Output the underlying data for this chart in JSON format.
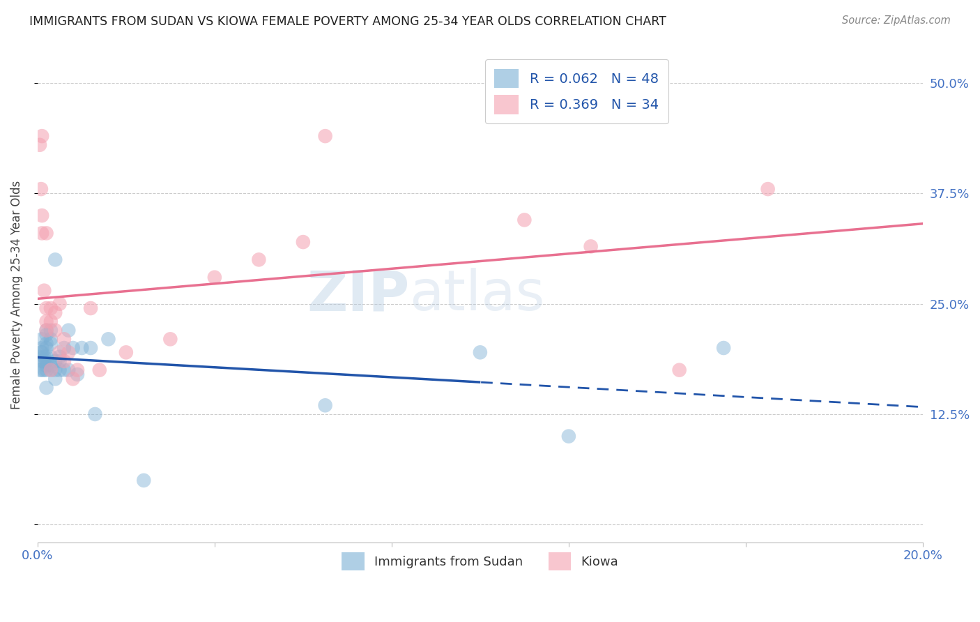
{
  "title": "IMMIGRANTS FROM SUDAN VS KIOWA FEMALE POVERTY AMONG 25-34 YEAR OLDS CORRELATION CHART",
  "source": "Source: ZipAtlas.com",
  "tick_color": "#4472c4",
  "ylabel": "Female Poverty Among 25-34 Year Olds",
  "x_min": 0.0,
  "x_max": 0.2,
  "y_min": -0.02,
  "y_max": 0.54,
  "y_ticks": [
    0.0,
    0.125,
    0.25,
    0.375,
    0.5
  ],
  "y_tick_labels": [
    "",
    "12.5%",
    "25.0%",
    "37.5%",
    "50.0%"
  ],
  "x_ticks": [
    0.0,
    0.04,
    0.08,
    0.12,
    0.16,
    0.2
  ],
  "x_tick_labels": [
    "0.0%",
    "",
    "",
    "",
    "",
    "20.0%"
  ],
  "blue_color": "#7bafd4",
  "pink_color": "#f4a0b0",
  "trend_blue": "#2255aa",
  "trend_pink": "#e87090",
  "background": "#ffffff",
  "grid_color": "#cccccc",
  "watermark_zip": "ZIP",
  "watermark_atlas": "atlas",
  "sudan_x": [
    0.0005,
    0.0005,
    0.0008,
    0.001,
    0.001,
    0.001,
    0.001,
    0.001,
    0.0015,
    0.0015,
    0.0015,
    0.002,
    0.002,
    0.002,
    0.002,
    0.002,
    0.002,
    0.002,
    0.002,
    0.002,
    0.003,
    0.003,
    0.003,
    0.003,
    0.003,
    0.003,
    0.004,
    0.004,
    0.004,
    0.004,
    0.005,
    0.005,
    0.005,
    0.006,
    0.006,
    0.007,
    0.007,
    0.008,
    0.009,
    0.01,
    0.012,
    0.013,
    0.016,
    0.024,
    0.065,
    0.1,
    0.12,
    0.155
  ],
  "sudan_y": [
    0.175,
    0.19,
    0.195,
    0.175,
    0.185,
    0.195,
    0.2,
    0.21,
    0.175,
    0.185,
    0.19,
    0.155,
    0.175,
    0.18,
    0.185,
    0.19,
    0.2,
    0.205,
    0.215,
    0.22,
    0.175,
    0.18,
    0.19,
    0.205,
    0.21,
    0.22,
    0.165,
    0.175,
    0.185,
    0.3,
    0.175,
    0.185,
    0.19,
    0.175,
    0.2,
    0.175,
    0.22,
    0.2,
    0.17,
    0.2,
    0.2,
    0.125,
    0.21,
    0.05,
    0.135,
    0.195,
    0.1,
    0.2
  ],
  "kiowa_x": [
    0.0005,
    0.0008,
    0.001,
    0.001,
    0.001,
    0.0015,
    0.002,
    0.002,
    0.002,
    0.002,
    0.003,
    0.003,
    0.003,
    0.004,
    0.004,
    0.005,
    0.005,
    0.006,
    0.006,
    0.007,
    0.008,
    0.009,
    0.012,
    0.014,
    0.02,
    0.03,
    0.04,
    0.05,
    0.06,
    0.065,
    0.11,
    0.125,
    0.145,
    0.165
  ],
  "kiowa_y": [
    0.43,
    0.38,
    0.33,
    0.35,
    0.44,
    0.265,
    0.22,
    0.23,
    0.245,
    0.33,
    0.23,
    0.245,
    0.175,
    0.22,
    0.24,
    0.195,
    0.25,
    0.185,
    0.21,
    0.195,
    0.165,
    0.175,
    0.245,
    0.175,
    0.195,
    0.21,
    0.28,
    0.3,
    0.32,
    0.44,
    0.345,
    0.315,
    0.175,
    0.38
  ]
}
